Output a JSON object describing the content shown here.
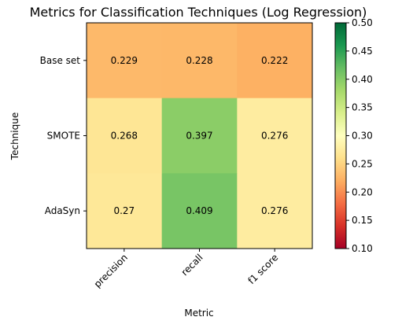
{
  "chart_data": {
    "type": "heatmap",
    "title": "Metrics for Classification Techniques (Log Regression)",
    "xlabel": "Metric",
    "ylabel": "Technique",
    "x_categories": [
      "precision",
      "recall",
      "f1 score"
    ],
    "y_categories": [
      "Base set",
      "SMOTE",
      "AdaSyn"
    ],
    "values": [
      [
        0.229,
        0.228,
        0.222
      ],
      [
        0.268,
        0.397,
        0.276
      ],
      [
        0.27,
        0.409,
        0.276
      ]
    ],
    "value_labels": [
      [
        "0.229",
        "0.228",
        "0.222"
      ],
      [
        "0.268",
        "0.397",
        "0.276"
      ],
      [
        "0.27",
        "0.409",
        "0.276"
      ]
    ],
    "colormap": "RdYlGn",
    "vmin": 0.1,
    "vmax": 0.5,
    "colorbar_ticks": [
      0.1,
      0.15,
      0.2,
      0.25,
      0.3,
      0.35,
      0.4,
      0.45,
      0.5
    ],
    "colorbar_tick_labels": [
      "0.10",
      "0.15",
      "0.20",
      "0.25",
      "0.30",
      "0.35",
      "0.40",
      "0.45",
      "0.50"
    ],
    "grid": false
  }
}
